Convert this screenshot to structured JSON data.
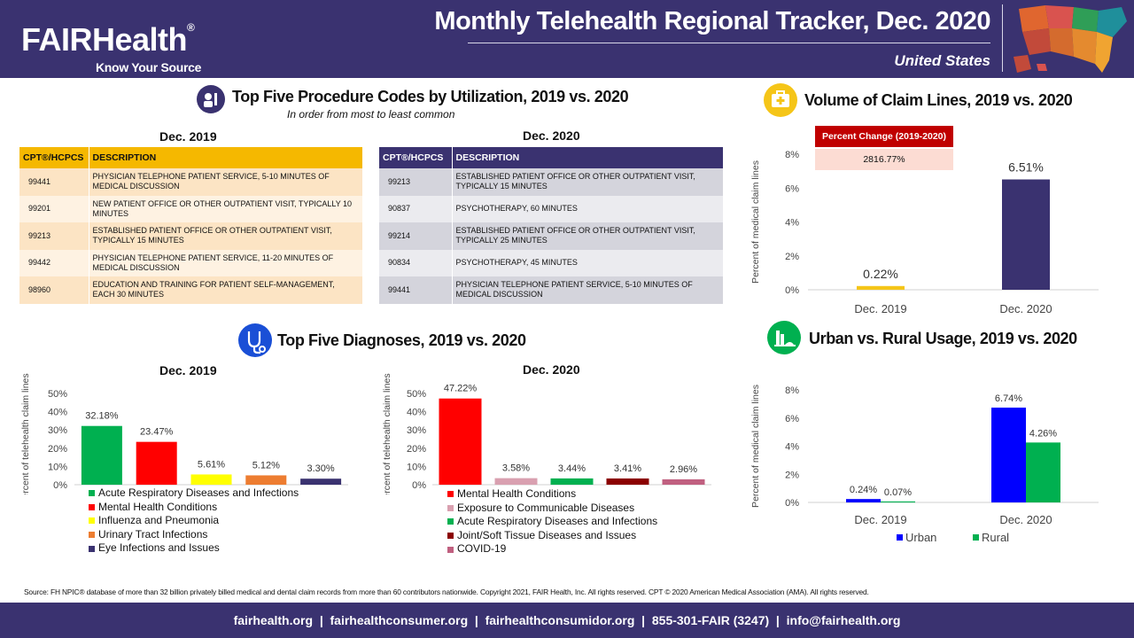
{
  "header": {
    "logo_fair": "FAIR",
    "logo_health": "Health",
    "logo_reg": "®",
    "logo_tagline": "Know Your Source",
    "title": "Monthly Telehealth Regional Tracker, Dec. 2020",
    "region": "United States"
  },
  "procedures": {
    "title": "Top Five Procedure Codes by Utilization, 2019 vs. 2020",
    "subtitle": "In order from most to least common",
    "col_code": "CPT®/HCPCS",
    "col_desc": "DESCRIPTION",
    "dec2019": {
      "heading": "Dec. 2019",
      "rows": [
        {
          "code": "99441",
          "desc": "PHYSICIAN TELEPHONE PATIENT SERVICE, 5-10 MINUTES OF MEDICAL DISCUSSION"
        },
        {
          "code": "99201",
          "desc": "NEW PATIENT OFFICE OR OTHER OUTPATIENT VISIT, TYPICALLY 10 MINUTES"
        },
        {
          "code": "99213",
          "desc": "ESTABLISHED PATIENT OFFICE OR OTHER OUTPATIENT VISIT, TYPICALLY 15 MINUTES"
        },
        {
          "code": "99442",
          "desc": "PHYSICIAN TELEPHONE PATIENT SERVICE, 11-20 MINUTES OF MEDICAL DISCUSSION"
        },
        {
          "code": "98960",
          "desc": "EDUCATION AND TRAINING FOR PATIENT SELF-MANAGEMENT, EACH 30 MINUTES"
        }
      ]
    },
    "dec2020": {
      "heading": "Dec. 2020",
      "rows": [
        {
          "code": "99213",
          "desc": "ESTABLISHED PATIENT OFFICE OR OTHER OUTPATIENT VISIT, TYPICALLY 15 MINUTES"
        },
        {
          "code": "90837",
          "desc": "PSYCHOTHERAPY, 60 MINUTES"
        },
        {
          "code": "99214",
          "desc": "ESTABLISHED PATIENT OFFICE OR OTHER OUTPATIENT VISIT, TYPICALLY 25 MINUTES"
        },
        {
          "code": "90834",
          "desc": "PSYCHOTHERAPY, 45 MINUTES"
        },
        {
          "code": "99441",
          "desc": "PHYSICIAN TELEPHONE PATIENT SERVICE, 5-10 MINUTES OF MEDICAL DISCUSSION"
        }
      ]
    }
  },
  "volume": {
    "title": "Volume of Claim Lines, 2019 vs. 2020",
    "pct_change_label": "Percent Change (2019-2020)",
    "pct_change_value": "2816.77%"
  },
  "diagnoses": {
    "title": "Top Five Diagnoses, 2019 vs. 2020"
  },
  "urban_rural": {
    "title": "Urban vs. Rural Usage, 2019 vs. 2020"
  },
  "chart_data": [
    {
      "id": "volume",
      "type": "bar",
      "categories": [
        "Dec. 2019",
        "Dec. 2020"
      ],
      "values": [
        0.22,
        6.51
      ],
      "value_labels": [
        "0.22%",
        "6.51%"
      ],
      "colors": [
        "#f5c518",
        "#3a3270"
      ],
      "ylabel": "Percent of medical claim lines",
      "ylim": [
        0,
        8
      ],
      "yticks": [
        0,
        2,
        4,
        6,
        8
      ],
      "ytick_labels": [
        "0%",
        "2%",
        "4%",
        "6%",
        "8%"
      ]
    },
    {
      "id": "diag2019",
      "type": "bar",
      "title": "Dec. 2019",
      "categories": [
        "Acute Respiratory Diseases and Infections",
        "Mental Health Conditions",
        "Influenza and Pneumonia",
        "Urinary Tract Infections",
        "Eye Infections and Issues"
      ],
      "values": [
        32.18,
        23.47,
        5.61,
        5.12,
        3.3
      ],
      "value_labels": [
        "32.18%",
        "23.47%",
        "5.61%",
        "5.12%",
        "3.30%"
      ],
      "colors": [
        "#00b050",
        "#ff0000",
        "#ffff00",
        "#ed7d31",
        "#3a3270"
      ],
      "ylabel": "Percent of telehealth claim lines",
      "ylim": [
        0,
        50
      ],
      "yticks": [
        0,
        10,
        20,
        30,
        40,
        50
      ],
      "ytick_labels": [
        "0%",
        "10%",
        "20%",
        "30%",
        "40%",
        "50%"
      ],
      "legend": "bottom"
    },
    {
      "id": "diag2020",
      "type": "bar",
      "title": "Dec. 2020",
      "categories": [
        "Mental Health Conditions",
        "Exposure to Communicable Diseases",
        "Acute Respiratory Diseases and Infections",
        "Joint/Soft Tissue Diseases and Issues",
        "COVID-19"
      ],
      "values": [
        47.22,
        3.58,
        3.44,
        3.41,
        2.96
      ],
      "value_labels": [
        "47.22%",
        "3.58%",
        "3.44%",
        "3.41%",
        "2.96%"
      ],
      "colors": [
        "#ff0000",
        "#d9a0b0",
        "#00b050",
        "#8b0000",
        "#c06080"
      ],
      "ylabel": "Percent of telehealth claim lines",
      "ylim": [
        0,
        50
      ],
      "yticks": [
        0,
        10,
        20,
        30,
        40,
        50
      ],
      "ytick_labels": [
        "0%",
        "10%",
        "20%",
        "30%",
        "40%",
        "50%"
      ],
      "legend": "bottom"
    },
    {
      "id": "urbanrural",
      "type": "bar",
      "categories": [
        "Dec. 2019",
        "Dec. 2020"
      ],
      "series": [
        {
          "name": "Urban",
          "values": [
            0.24,
            6.74
          ],
          "value_labels": [
            "0.24%",
            "6.74%"
          ],
          "color": "#0000ff"
        },
        {
          "name": "Rural",
          "values": [
            0.07,
            4.26
          ],
          "value_labels": [
            "0.07%",
            "4.26%"
          ],
          "color": "#00b050"
        }
      ],
      "ylabel": "Percent of medical claim lines",
      "ylim": [
        0,
        8
      ],
      "yticks": [
        0,
        2,
        4,
        6,
        8
      ],
      "ytick_labels": [
        "0%",
        "2%",
        "4%",
        "6%",
        "8%"
      ],
      "legend": "bottom"
    }
  ],
  "source": "Source: FH NPIC® database of more than 32 billion privately billed medical and dental claim records from more than 60 contributors nationwide. Copyright 2021, FAIR Health, Inc. All rights reserved. CPT © 2020 American Medical Association (AMA). All rights reserved.",
  "footer": "fairhealth.org  |  fairhealthconsumer.org  |  fairhealthconsumidor.org  |  855-301-FAIR (3247)  |  info@fairhealth.org"
}
